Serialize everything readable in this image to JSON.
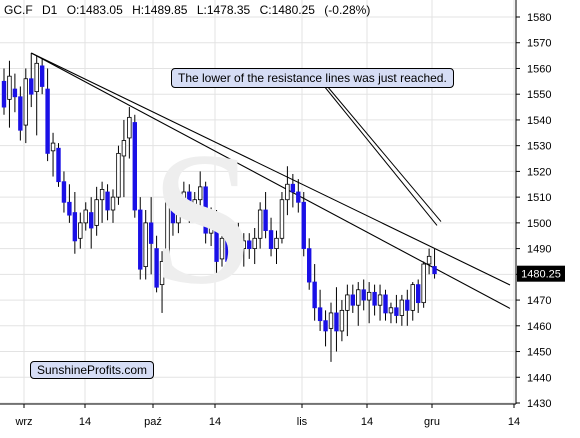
{
  "header": {
    "symbol": "GC.F",
    "period": "D1",
    "open": "O:1483.05",
    "high": "H:1489.85",
    "low": "L:1478.35",
    "close": "C:1480.25",
    "change": "(-0.28%)"
  },
  "annotation": "The lower of the resistance lines was just reached.",
  "brand": "SunshineProfits.com",
  "colors": {
    "up": "#ffffff",
    "down": "#1a10e6",
    "wick": "#000000",
    "last_price_bg": "#000000",
    "callout_bg": "#d6ddf5"
  },
  "chart_data": {
    "type": "candlestick",
    "ylim": [
      1430,
      1580
    ],
    "y_ticks": [
      "1580",
      "1570",
      "1560",
      "1550",
      "1540",
      "1530",
      "1520",
      "1510",
      "1500",
      "1490",
      "1480",
      "1470",
      "1460",
      "1450",
      "1440",
      "1430"
    ],
    "x_ticks": [
      "wrz",
      "14",
      "paź",
      "14",
      "lis",
      "14",
      "gru",
      "14"
    ],
    "last_price": "1480.25",
    "grid": true,
    "candles": [
      {
        "o": 1555,
        "h": 1560,
        "l": 1542,
        "c": 1545
      },
      {
        "o": 1548,
        "h": 1563,
        "l": 1537,
        "c": 1557
      },
      {
        "o": 1552,
        "h": 1558,
        "l": 1543,
        "c": 1549
      },
      {
        "o": 1549,
        "h": 1553,
        "l": 1532,
        "c": 1536
      },
      {
        "o": 1538,
        "h": 1560,
        "l": 1531,
        "c": 1556
      },
      {
        "o": 1556,
        "h": 1566,
        "l": 1545,
        "c": 1550
      },
      {
        "o": 1551,
        "h": 1565,
        "l": 1534,
        "c": 1562
      },
      {
        "o": 1561,
        "h": 1564,
        "l": 1550,
        "c": 1553
      },
      {
        "o": 1552,
        "h": 1560,
        "l": 1524,
        "c": 1527
      },
      {
        "o": 1528,
        "h": 1535,
        "l": 1518,
        "c": 1531
      },
      {
        "o": 1529,
        "h": 1531,
        "l": 1514,
        "c": 1516
      },
      {
        "o": 1516,
        "h": 1520,
        "l": 1504,
        "c": 1508
      },
      {
        "o": 1508,
        "h": 1515,
        "l": 1500,
        "c": 1503
      },
      {
        "o": 1504,
        "h": 1512,
        "l": 1488,
        "c": 1493
      },
      {
        "o": 1494,
        "h": 1504,
        "l": 1490,
        "c": 1500
      },
      {
        "o": 1500,
        "h": 1508,
        "l": 1497,
        "c": 1505
      },
      {
        "o": 1504,
        "h": 1510,
        "l": 1490,
        "c": 1498
      },
      {
        "o": 1499,
        "h": 1514,
        "l": 1495,
        "c": 1509
      },
      {
        "o": 1509,
        "h": 1516,
        "l": 1500,
        "c": 1513
      },
      {
        "o": 1512,
        "h": 1515,
        "l": 1501,
        "c": 1505
      },
      {
        "o": 1505,
        "h": 1513,
        "l": 1500,
        "c": 1510
      },
      {
        "o": 1510,
        "h": 1530,
        "l": 1507,
        "c": 1527
      },
      {
        "o": 1526,
        "h": 1540,
        "l": 1510,
        "c": 1532
      },
      {
        "o": 1533,
        "h": 1545,
        "l": 1525,
        "c": 1541
      },
      {
        "o": 1539,
        "h": 1542,
        "l": 1502,
        "c": 1505
      },
      {
        "o": 1505,
        "h": 1510,
        "l": 1478,
        "c": 1482
      },
      {
        "o": 1483,
        "h": 1505,
        "l": 1478,
        "c": 1500
      },
      {
        "o": 1500,
        "h": 1510,
        "l": 1480,
        "c": 1492
      },
      {
        "o": 1490,
        "h": 1495,
        "l": 1473,
        "c": 1475
      },
      {
        "o": 1476,
        "h": 1489,
        "l": 1465,
        "c": 1485
      },
      {
        "o": 1485,
        "h": 1512,
        "l": 1482,
        "c": 1508
      },
      {
        "o": 1509,
        "h": 1518,
        "l": 1495,
        "c": 1500
      },
      {
        "o": 1500,
        "h": 1512,
        "l": 1496,
        "c": 1509
      },
      {
        "o": 1508,
        "h": 1516,
        "l": 1504,
        "c": 1512
      },
      {
        "o": 1512,
        "h": 1515,
        "l": 1500,
        "c": 1503
      },
      {
        "o": 1503,
        "h": 1512,
        "l": 1500,
        "c": 1509
      },
      {
        "o": 1509,
        "h": 1520,
        "l": 1503,
        "c": 1514
      },
      {
        "o": 1514,
        "h": 1516,
        "l": 1492,
        "c": 1496
      },
      {
        "o": 1496,
        "h": 1506,
        "l": 1491,
        "c": 1502
      },
      {
        "o": 1502,
        "h": 1505,
        "l": 1480,
        "c": 1485
      },
      {
        "o": 1486,
        "h": 1498,
        "l": 1483,
        "c": 1494
      },
      {
        "o": 1494,
        "h": 1498,
        "l": 1482,
        "c": 1485
      },
      {
        "o": 1485,
        "h": 1495,
        "l": 1481,
        "c": 1492
      },
      {
        "o": 1492,
        "h": 1500,
        "l": 1486,
        "c": 1490
      },
      {
        "o": 1490,
        "h": 1496,
        "l": 1483,
        "c": 1493
      },
      {
        "o": 1493,
        "h": 1496,
        "l": 1486,
        "c": 1490
      },
      {
        "o": 1490,
        "h": 1498,
        "l": 1484,
        "c": 1494
      },
      {
        "o": 1494,
        "h": 1508,
        "l": 1490,
        "c": 1505
      },
      {
        "o": 1505,
        "h": 1512,
        "l": 1494,
        "c": 1497
      },
      {
        "o": 1497,
        "h": 1502,
        "l": 1487,
        "c": 1490
      },
      {
        "o": 1490,
        "h": 1497,
        "l": 1484,
        "c": 1494
      },
      {
        "o": 1494,
        "h": 1512,
        "l": 1492,
        "c": 1509
      },
      {
        "o": 1509,
        "h": 1522,
        "l": 1503,
        "c": 1515
      },
      {
        "o": 1515,
        "h": 1519,
        "l": 1506,
        "c": 1512
      },
      {
        "o": 1512,
        "h": 1517,
        "l": 1504,
        "c": 1508
      },
      {
        "o": 1508,
        "h": 1512,
        "l": 1487,
        "c": 1490
      },
      {
        "o": 1490,
        "h": 1494,
        "l": 1474,
        "c": 1477
      },
      {
        "o": 1477,
        "h": 1484,
        "l": 1462,
        "c": 1467
      },
      {
        "o": 1467,
        "h": 1474,
        "l": 1458,
        "c": 1462
      },
      {
        "o": 1462,
        "h": 1466,
        "l": 1452,
        "c": 1458
      },
      {
        "o": 1459,
        "h": 1469,
        "l": 1446,
        "c": 1465
      },
      {
        "o": 1465,
        "h": 1475,
        "l": 1450,
        "c": 1458
      },
      {
        "o": 1458,
        "h": 1470,
        "l": 1454,
        "c": 1466
      },
      {
        "o": 1466,
        "h": 1476,
        "l": 1456,
        "c": 1472
      },
      {
        "o": 1472,
        "h": 1476,
        "l": 1465,
        "c": 1468
      },
      {
        "o": 1468,
        "h": 1477,
        "l": 1460,
        "c": 1474
      },
      {
        "o": 1474,
        "h": 1478,
        "l": 1466,
        "c": 1470
      },
      {
        "o": 1470,
        "h": 1477,
        "l": 1461,
        "c": 1473
      },
      {
        "o": 1473,
        "h": 1476,
        "l": 1464,
        "c": 1468
      },
      {
        "o": 1468,
        "h": 1476,
        "l": 1462,
        "c": 1472
      },
      {
        "o": 1472,
        "h": 1474,
        "l": 1462,
        "c": 1465
      },
      {
        "o": 1465,
        "h": 1469,
        "l": 1461,
        "c": 1467
      },
      {
        "o": 1467,
        "h": 1472,
        "l": 1461,
        "c": 1464
      },
      {
        "o": 1464,
        "h": 1472,
        "l": 1460,
        "c": 1470
      },
      {
        "o": 1470,
        "h": 1474,
        "l": 1460,
        "c": 1466
      },
      {
        "o": 1466,
        "h": 1477,
        "l": 1462,
        "c": 1476
      },
      {
        "o": 1476,
        "h": 1478,
        "l": 1465,
        "c": 1469
      },
      {
        "o": 1469,
        "h": 1485,
        "l": 1467,
        "c": 1484
      },
      {
        "o": 1484,
        "h": 1490,
        "l": 1480,
        "c": 1487
      },
      {
        "o": 1483.05,
        "h": 1489.85,
        "l": 1478.35,
        "c": 1480.25
      }
    ],
    "trendlines": [
      {
        "from": {
          "bar": 5,
          "price": 1566
        },
        "to": {
          "bar": 82,
          "price": 1487
        }
      },
      {
        "from": {
          "bar": 5,
          "price": 1566
        },
        "to": {
          "bar": 82,
          "price": 1479
        }
      }
    ]
  }
}
